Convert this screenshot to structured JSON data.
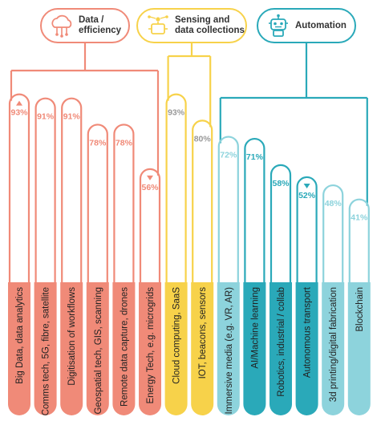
{
  "groups": [
    {
      "label": "Data /\nefficiency",
      "color": "#f08a78",
      "icon": "cloud-network-icon"
    },
    {
      "label": "Sensing and\ndata collections",
      "color": "#f7d24a",
      "icon": "sensor-chip-icon"
    },
    {
      "label": "Automation",
      "color": "#2aa9b9",
      "icon": "robot-icon"
    }
  ],
  "chart_data": {
    "type": "bar",
    "ylim": [
      0,
      100
    ],
    "categories": [
      "Big Data, data analytics",
      "Comms tech, 5G, fibre, satellite",
      "Digitisation of workflows",
      "Geospatial tech, GIS, scanning",
      "Remote data capture, drones",
      "Energy Tech, e.g. microgrids",
      "Cloud computing, SaaS",
      "IOT, beacons, sensors",
      "Immersive media (e.g. VR, AR)",
      "AI/Machine learning",
      "Robotics, industrial / collab",
      "Autonomous transport",
      "3d printing/digital fabrication",
      "Blockchain"
    ],
    "values": [
      93,
      91,
      91,
      78,
      78,
      56,
      93,
      80,
      72,
      71,
      58,
      52,
      48,
      41
    ],
    "value_labels": [
      "93%",
      "91%",
      "91%",
      "78%",
      "78%",
      "56%",
      "93%",
      "80%",
      "72%",
      "71%",
      "58%",
      "52%",
      "48%",
      "41%"
    ],
    "group_index": [
      0,
      0,
      0,
      0,
      0,
      0,
      1,
      1,
      2,
      2,
      2,
      2,
      2,
      2
    ],
    "arrow": [
      "up",
      "",
      "",
      "",
      "",
      "down",
      "",
      "",
      "",
      "",
      "",
      "down",
      "",
      ""
    ],
    "tones": [
      "#f08a78",
      "#f08a78",
      "#f08a78",
      "#f08a78",
      "#f08a78",
      "#f08a78",
      "#f7d24a",
      "#f7d24a",
      "#8dd3dc",
      "#2aa9b9",
      "#2aa9b9",
      "#2aa9b9",
      "#8dd3dc",
      "#8dd3dc"
    ],
    "label_colors": [
      "#f08a78",
      "#f08a78",
      "#f08a78",
      "#f08a78",
      "#f08a78",
      "#f08a78",
      "#999999",
      "#999999",
      "#8dd3dc",
      "#2aa9b9",
      "#2aa9b9",
      "#2aa9b9",
      "#8dd3dc",
      "#8dd3dc"
    ],
    "name_colors": [
      "#222222",
      "#222222",
      "#222222",
      "#222222",
      "#222222",
      "#222222",
      "#222222",
      "#222222",
      "#222222",
      "#222222",
      "#222222",
      "#222222",
      "#222222",
      "#222222"
    ]
  }
}
